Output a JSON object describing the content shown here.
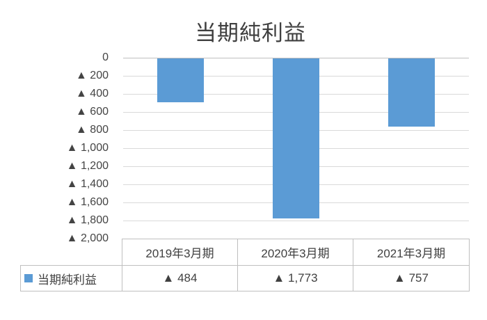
{
  "title": "当期純利益",
  "colors": {
    "bar": "#5B9BD5",
    "gridline": "#D9D9D9",
    "axis_line": "#BFBFBF",
    "table_border": "#BFBFBF",
    "title_text": "#3F3F3F",
    "axis_text": "#444444",
    "table_text": "#404040"
  },
  "chart_data": {
    "type": "bar",
    "title": "当期純利益",
    "categories": [
      "2019年3月期",
      "2020年3月期",
      "2021年3月期"
    ],
    "series": [
      {
        "name": "当期純利益",
        "values": [
          -484,
          -1773,
          -757
        ]
      }
    ],
    "value_labels": [
      "▲ 484",
      "▲ 1,773",
      "▲ 757"
    ],
    "xlabel": "",
    "ylabel": "",
    "ylim": [
      -2000,
      0
    ],
    "ytick_step": 200,
    "ytick_labels": [
      "0",
      "▲ 200",
      "▲ 400",
      "▲ 600",
      "▲ 800",
      "▲ 1,000",
      "▲ 1,200",
      "▲ 1,400",
      "▲ 1,600",
      "▲ 1,800",
      "▲ 2,000"
    ],
    "grid": true,
    "legend_position": "table-row-left",
    "bar_color": "#5B9BD5"
  },
  "legend": {
    "label": "当期純利益",
    "key_color": "#5B9BD5"
  }
}
